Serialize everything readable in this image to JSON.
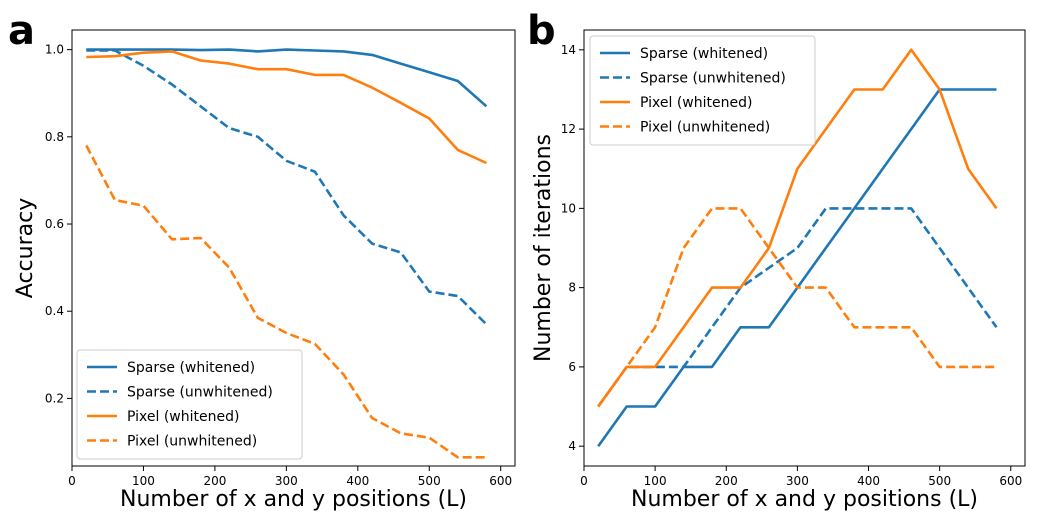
{
  "chart_data": [
    {
      "panel_label": "a",
      "type": "line",
      "xlabel": "Number of x and y positions (L)",
      "ylabel": "Accuracy",
      "xlim": [
        0,
        620
      ],
      "ylim": [
        0.045,
        1.045
      ],
      "xticks": [
        0,
        100,
        200,
        300,
        400,
        500,
        600
      ],
      "yticks": [
        0.2,
        0.4,
        0.6,
        0.8,
        1.0
      ],
      "ytick_labels": [
        "0.2",
        "0.4",
        "0.6",
        "0.8",
        "1.0"
      ],
      "legend_position": "bottom-left",
      "x": [
        20,
        60,
        100,
        140,
        180,
        220,
        260,
        300,
        340,
        380,
        420,
        460,
        500,
        540,
        580
      ],
      "series": [
        {
          "name": "Sparse (whitened)",
          "color": "#1f77b4",
          "dash": "solid",
          "values": [
            1.0,
            1.0,
            1.0,
            1.0,
            0.999,
            1.0,
            0.996,
            1.0,
            0.998,
            0.996,
            0.988,
            0.968,
            0.948,
            0.928,
            0.87
          ]
        },
        {
          "name": "Sparse (unwhitened)",
          "color": "#1f77b4",
          "dash": "dashed",
          "values": [
            0.998,
            0.998,
            0.963,
            0.92,
            0.87,
            0.82,
            0.8,
            0.745,
            0.72,
            0.62,
            0.555,
            0.535,
            0.445,
            0.435,
            0.37
          ]
        },
        {
          "name": "Pixel (whitened)",
          "color": "#ff7f0e",
          "dash": "solid",
          "values": [
            0.983,
            0.985,
            0.993,
            0.996,
            0.975,
            0.968,
            0.955,
            0.955,
            0.942,
            0.942,
            0.913,
            0.878,
            0.842,
            0.77,
            0.74
          ]
        },
        {
          "name": "Pixel (unwhitened)",
          "color": "#ff7f0e",
          "dash": "dashed",
          "values": [
            0.78,
            0.655,
            0.642,
            0.565,
            0.568,
            0.5,
            0.385,
            0.35,
            0.325,
            0.255,
            0.155,
            0.12,
            0.11,
            0.065,
            0.065
          ]
        }
      ]
    },
    {
      "panel_label": "b",
      "type": "line",
      "xlabel": "Number of x and y positions (L)",
      "ylabel": "Number of iterations",
      "xlim": [
        0,
        620
      ],
      "ylim": [
        3.5,
        14.5
      ],
      "xticks": [
        0,
        100,
        200,
        300,
        400,
        500,
        600
      ],
      "yticks": [
        4,
        6,
        8,
        10,
        12,
        14
      ],
      "ytick_labels": [
        "4",
        "6",
        "8",
        "10",
        "12",
        "14"
      ],
      "legend_position": "top-left",
      "x": [
        20,
        60,
        100,
        140,
        180,
        220,
        260,
        300,
        340,
        380,
        420,
        460,
        500,
        540,
        580
      ],
      "series": [
        {
          "name": "Sparse (whitened)",
          "color": "#1f77b4",
          "dash": "solid",
          "values": [
            4,
            5,
            5,
            6,
            6,
            7,
            7,
            8,
            9,
            10,
            11,
            12,
            13,
            13,
            13
          ]
        },
        {
          "name": "Sparse (unwhitened)",
          "color": "#1f77b4",
          "dash": "dashed",
          "values": [
            5,
            6,
            6,
            6,
            7,
            8,
            8.5,
            9,
            10,
            10,
            10,
            10,
            9,
            8,
            7
          ]
        },
        {
          "name": "Pixel (whitened)",
          "color": "#ff7f0e",
          "dash": "solid",
          "values": [
            5,
            6,
            6,
            7,
            8,
            8,
            9,
            11,
            12,
            13,
            13,
            14,
            13,
            11,
            10
          ]
        },
        {
          "name": "Pixel (unwhitened)",
          "color": "#ff7f0e",
          "dash": "dashed",
          "values": [
            5,
            6,
            7,
            9,
            10,
            10,
            9,
            8,
            8,
            7,
            7,
            7,
            6,
            6,
            6
          ]
        }
      ]
    }
  ]
}
